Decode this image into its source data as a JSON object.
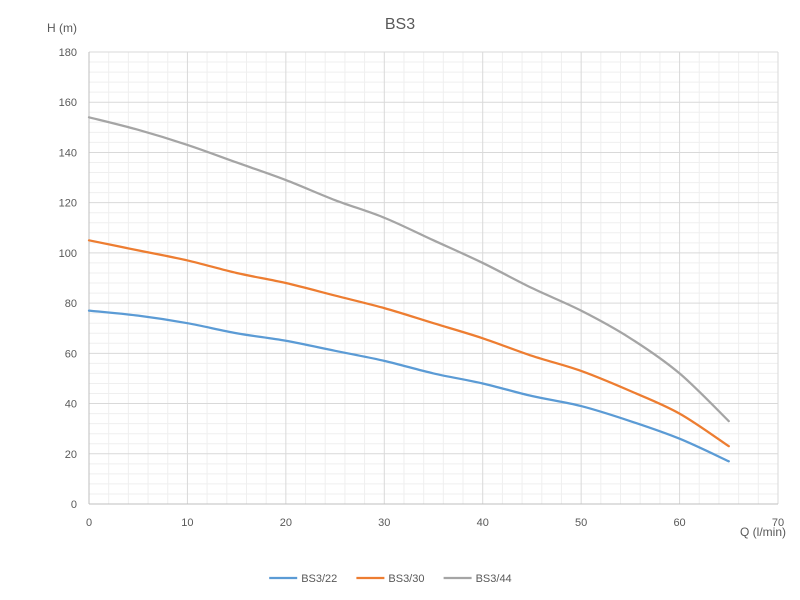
{
  "chart_data": {
    "type": "line",
    "title": "BS3",
    "xlabel": "Q (l/min)",
    "ylabel": "H (m)",
    "xlim": [
      0,
      70
    ],
    "ylim": [
      0,
      180
    ],
    "xticks": [
      0,
      10,
      20,
      30,
      40,
      50,
      60,
      70
    ],
    "yticks": [
      0,
      20,
      40,
      60,
      80,
      100,
      120,
      140,
      160,
      180
    ],
    "grid": true,
    "minor_grid": true,
    "legend_position": "bottom",
    "series": [
      {
        "name": "BS3/22",
        "color": "#5B9BD5",
        "x": [
          0,
          5,
          10,
          15,
          20,
          25,
          30,
          35,
          40,
          45,
          50,
          55,
          60,
          65
        ],
        "y": [
          77,
          75,
          72,
          68,
          65,
          61,
          57,
          52,
          48,
          43,
          39,
          33,
          26,
          17
        ]
      },
      {
        "name": "BS3/30",
        "color": "#ED7D31",
        "x": [
          0,
          5,
          10,
          15,
          20,
          25,
          30,
          35,
          40,
          45,
          50,
          55,
          60,
          65
        ],
        "y": [
          105,
          101,
          97,
          92,
          88,
          83,
          78,
          72,
          66,
          59,
          53,
          45,
          36,
          23
        ]
      },
      {
        "name": "BS3/44",
        "color": "#A5A5A5",
        "x": [
          0,
          5,
          10,
          15,
          20,
          25,
          30,
          35,
          40,
          45,
          50,
          55,
          60,
          65
        ],
        "y": [
          154,
          149,
          143,
          136,
          129,
          121,
          114,
          105,
          96,
          86,
          77,
          66,
          52,
          33
        ]
      }
    ]
  }
}
